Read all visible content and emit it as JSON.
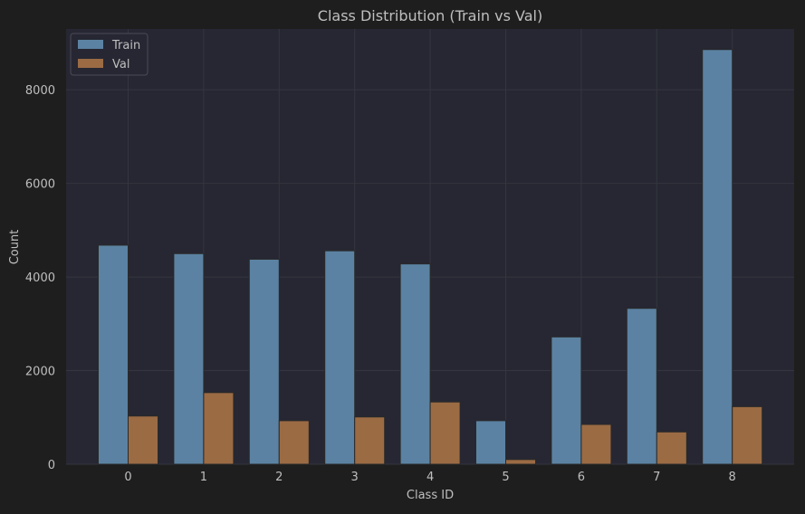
{
  "chart_data": {
    "type": "bar",
    "title": "Class Distribution (Train vs Val)",
    "xlabel": "Class ID",
    "ylabel": "Count",
    "categories": [
      "0",
      "1",
      "2",
      "3",
      "4",
      "5",
      "6",
      "7",
      "8"
    ],
    "series": [
      {
        "name": "Train",
        "values": [
          4680,
          4500,
          4380,
          4560,
          4280,
          930,
          2720,
          3330,
          8860
        ]
      },
      {
        "name": "Val",
        "values": [
          1030,
          1530,
          930,
          1010,
          1330,
          100,
          850,
          690,
          1230
        ]
      }
    ],
    "ylim": [
      0,
      9300
    ],
    "yticks": [
      "0",
      "2000",
      "4000",
      "6000",
      "8000"
    ],
    "grid": true,
    "legend_position": "top-left"
  },
  "colors": {
    "figure_background": "#1e1e1e",
    "plot_background": "#262732",
    "train": "#5b82a2",
    "val": "#9b6b44",
    "text": "#bfbfbf",
    "grid": "#34353f"
  }
}
